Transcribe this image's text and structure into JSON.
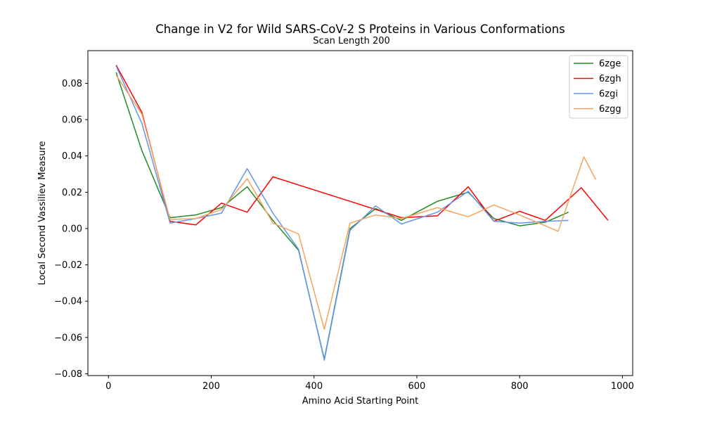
{
  "chart_data": {
    "type": "line",
    "title": "Change in V2 for Wild SARS-CoV-2 S Proteins in Various Conformations",
    "subtitle": "Scan Length 200",
    "xlabel": "Amino Acid Starting Point",
    "ylabel": "Local Second Vassiliev Measure",
    "xlim": [
      -40,
      1020
    ],
    "ylim": [
      -0.081,
      0.098
    ],
    "xticks": [
      0,
      200,
      400,
      600,
      800,
      1000
    ],
    "xtick_labels": [
      "0",
      "200",
      "400",
      "600",
      "800",
      "1000"
    ],
    "yticks": [
      -0.08,
      -0.06,
      -0.04,
      -0.02,
      0.0,
      0.02,
      0.04,
      0.06,
      0.08
    ],
    "ytick_labels": [
      "−0.08",
      "−0.06",
      "−0.04",
      "−0.02",
      "0.00",
      "0.02",
      "0.04",
      "0.06",
      "0.08"
    ],
    "grid": false,
    "legend_position": "top-right",
    "series": [
      {
        "name": "6zge",
        "color": "#228b22",
        "x": [
          15,
          65,
          120,
          170,
          220,
          270,
          320,
          370,
          420,
          470,
          520,
          570,
          640,
          700,
          750,
          800,
          850,
          895
        ],
        "y": [
          0.086,
          0.043,
          0.006,
          0.0075,
          0.0115,
          0.023,
          0.0045,
          -0.012,
          -0.072,
          0.0,
          0.011,
          0.0045,
          0.015,
          0.02,
          0.0055,
          0.0015,
          0.0035,
          0.009
        ]
      },
      {
        "name": "6zgh",
        "color": "#ff0000",
        "x": [
          15,
          65,
          120,
          170,
          220,
          270,
          320,
          520,
          570,
          640,
          700,
          750,
          800,
          850,
          920,
          972
        ],
        "y": [
          0.09,
          0.064,
          0.004,
          0.002,
          0.014,
          0.009,
          0.0285,
          0.0105,
          0.006,
          0.007,
          0.023,
          0.004,
          0.0095,
          0.0045,
          0.0225,
          0.0045
        ]
      },
      {
        "name": "6zgi",
        "color": "#6495ed",
        "x": [
          15,
          65,
          120,
          170,
          220,
          270,
          320,
          370,
          420,
          470,
          520,
          570,
          640,
          700,
          750,
          800,
          850,
          895
        ],
        "y": [
          0.0895,
          0.058,
          0.003,
          0.0055,
          0.0085,
          0.033,
          0.0085,
          -0.0115,
          -0.0725,
          -0.001,
          0.0125,
          0.0025,
          0.009,
          0.0205,
          0.004,
          0.003,
          0.004,
          0.0045
        ]
      },
      {
        "name": "6zgg",
        "color": "#f4a460",
        "x": [
          15,
          65,
          120,
          170,
          220,
          270,
          320,
          370,
          420,
          470,
          520,
          570,
          640,
          700,
          750,
          800,
          875,
          925,
          948
        ],
        "y": [
          0.0845,
          0.063,
          0.005,
          0.0055,
          0.0105,
          0.0275,
          0.003,
          -0.003,
          -0.0555,
          0.003,
          0.0075,
          0.0055,
          0.0115,
          0.0065,
          0.013,
          0.0075,
          -0.0015,
          0.0395,
          0.027
        ]
      }
    ]
  }
}
